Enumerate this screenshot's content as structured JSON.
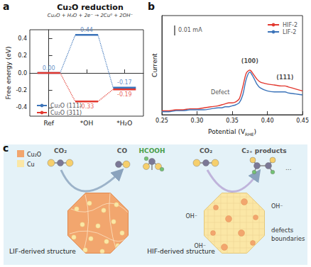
{
  "chart_data": [
    {
      "type": "energy_diagram",
      "panel": "a",
      "title": "Cu₂O reduction",
      "subtitle": "Cu₂O + H₂O + 2e⁻ → 2Cu⁰ + 2OH⁻",
      "categories": [
        "Ref",
        "*OH",
        "*H₂O"
      ],
      "ylabel": "Free energy (eV)",
      "ylim": [
        -0.5,
        0.5
      ],
      "yticks": [
        -0.4,
        -0.2,
        {
          "value": 0,
          "label": "0.0"
        },
        0.2,
        0.4
      ],
      "legend": "lower left",
      "data_labels": true,
      "series": [
        {
          "name": "Cu₂O (111)",
          "color": "#3b73b9",
          "values": [
            0,
            0.44,
            -0.17
          ],
          "value_labels": [
            "0.00",
            "0.44",
            "-0.17"
          ]
        },
        {
          "name": "Cu₂O (311)",
          "color": "#e2382f",
          "values": [
            0,
            -0.33,
            -0.19
          ],
          "value_labels": [
            null,
            "-0.33",
            "-0.19"
          ]
        }
      ]
    },
    {
      "type": "line",
      "panel": "b",
      "xlabel": "Potential (VRHE)",
      "xlabel_subscript": "RHE",
      "ylabel": "Current",
      "xlim": [
        0.25,
        0.45
      ],
      "xticks": [
        0.25,
        {
          "value": 0.3,
          "label": "0.30"
        },
        0.35,
        {
          "value": 0.4,
          "label": "0.40"
        },
        0.45
      ],
      "ylim": [
        0,
        0.1
      ],
      "tick_labels": "x",
      "legend": "upper right",
      "scale_bar": {
        "value": 0.01,
        "label": "0.01 mA"
      },
      "annotations": [
        {
          "text": "(100)",
          "x": 0.375,
          "y": 0.05
        },
        {
          "text": "(111)",
          "x": 0.425,
          "y": 0.033
        },
        {
          "text": "Defect",
          "x": 0.333,
          "y": 0.018
        }
      ],
      "x": [
        0.25,
        0.26,
        0.27,
        0.28,
        0.29,
        0.3,
        0.31,
        0.32,
        0.33,
        0.335,
        0.34,
        0.345,
        0.35,
        0.355,
        0.36,
        0.365,
        0.37,
        0.375,
        0.38,
        0.385,
        0.39,
        0.4,
        0.41,
        0.42,
        0.425,
        0.43,
        0.44,
        0.45
      ],
      "series": [
        {
          "name": "HIF-2",
          "color": "#e2382f",
          "values": [
            0.004,
            0.004,
            0.005,
            0.005,
            0.006,
            0.006,
            0.007,
            0.008,
            0.009,
            0.01,
            0.011,
            0.012,
            0.012,
            0.013,
            0.016,
            0.028,
            0.042,
            0.045,
            0.041,
            0.036,
            0.033,
            0.031,
            0.03,
            0.029,
            0.029,
            0.028,
            0.026,
            0.024
          ]
        },
        {
          "name": "LIF-2",
          "color": "#3b73b9",
          "values": [
            0.003,
            0.003,
            0.004,
            0.004,
            0.005,
            0.005,
            0.005,
            0.006,
            0.007,
            0.007,
            0.008,
            0.008,
            0.009,
            0.01,
            0.012,
            0.02,
            0.036,
            0.043,
            0.038,
            0.031,
            0.027,
            0.024,
            0.023,
            0.023,
            0.023,
            0.022,
            0.021,
            0.02
          ]
        }
      ]
    }
  ],
  "panel_c": {
    "label": "c",
    "legend": [
      {
        "name": "Cu₂O",
        "color": "#f2a66e"
      },
      {
        "name": "Cu",
        "color": "#fbe7a6"
      }
    ],
    "left": {
      "title": "LIF-derived structure",
      "reactant": "CO₂",
      "products": [
        "CO",
        "HCOOH"
      ]
    },
    "right": {
      "title": "HIF-derived structure",
      "reactant": "CO₂",
      "products": [
        "C₂₊ products",
        "..."
      ],
      "surface": [
        "OH⁻",
        "OH⁻",
        "OH⁻"
      ],
      "notes": [
        "defects",
        "boundaries"
      ]
    }
  }
}
